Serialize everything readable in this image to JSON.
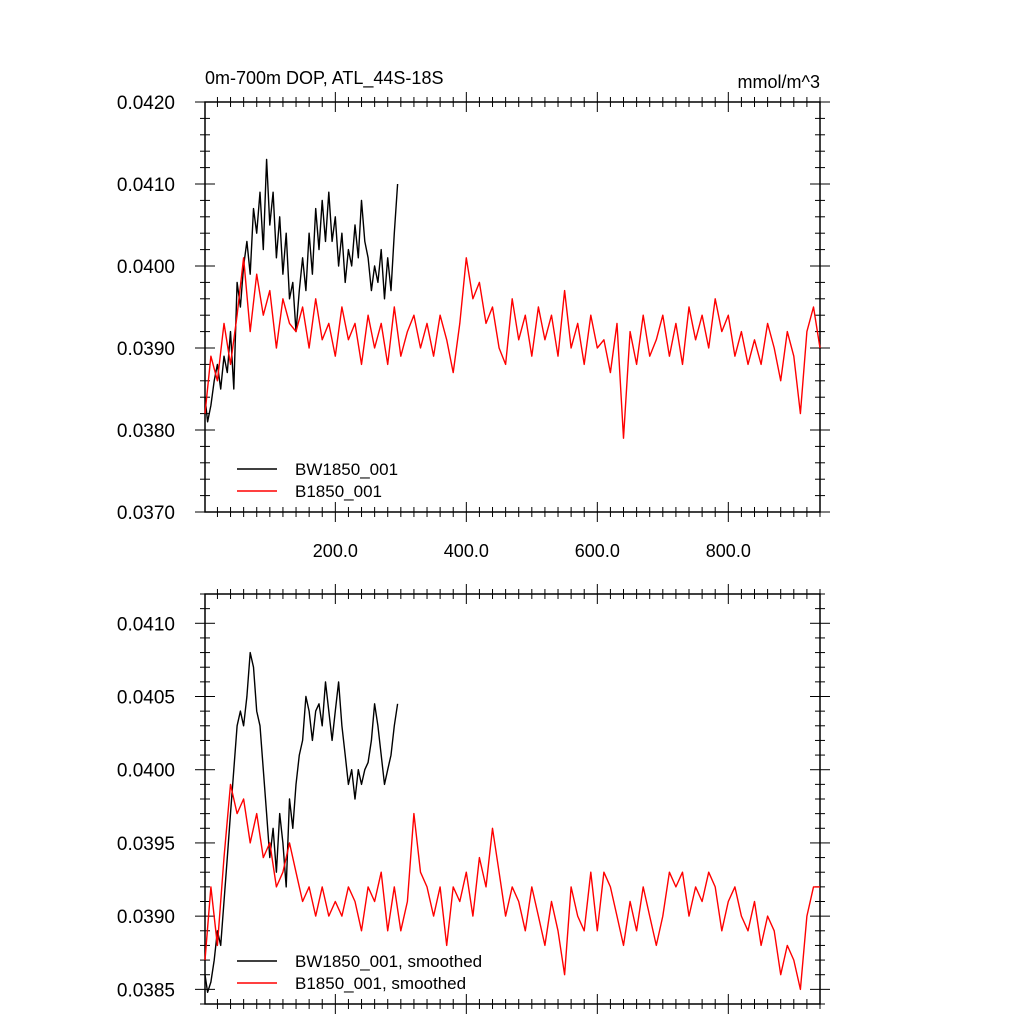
{
  "chart_data": [
    {
      "type": "line",
      "title": "0m-700m DOP, ATL_44S-18S",
      "units": "mmol/m^3",
      "xlim": [
        1,
        940
      ],
      "ylim": [
        0.037,
        0.042
      ],
      "x_ticks": [
        200,
        400,
        600,
        800
      ],
      "x_tick_labels": [
        "200.0",
        "400.0",
        "600.0",
        "800.0"
      ],
      "y_ticks": [
        0.037,
        0.038,
        0.039,
        0.04,
        0.041,
        0.042
      ],
      "y_tick_labels": [
        "0.0370",
        "0.0380",
        "0.0390",
        "0.0400",
        "0.0410",
        "0.0420"
      ],
      "legend_position": "bottom-left",
      "series": [
        {
          "name": "BW1850_001",
          "color": "#000000",
          "x": [
            1,
            5,
            10,
            15,
            20,
            25,
            30,
            35,
            40,
            45,
            50,
            55,
            60,
            65,
            70,
            75,
            80,
            85,
            90,
            95,
            100,
            105,
            110,
            115,
            120,
            125,
            130,
            135,
            140,
            145,
            150,
            155,
            160,
            165,
            170,
            175,
            180,
            185,
            190,
            195,
            200,
            205,
            210,
            215,
            220,
            225,
            230,
            235,
            240,
            245,
            250,
            255,
            260,
            265,
            270,
            275,
            280,
            285,
            290,
            295
          ],
          "values": [
            0.0384,
            0.0381,
            0.0383,
            0.0386,
            0.0388,
            0.0385,
            0.0389,
            0.0387,
            0.0392,
            0.0385,
            0.0398,
            0.0395,
            0.04,
            0.0403,
            0.0399,
            0.0407,
            0.0404,
            0.0409,
            0.0402,
            0.0413,
            0.0405,
            0.0409,
            0.0401,
            0.0406,
            0.0399,
            0.0404,
            0.0396,
            0.0398,
            0.0392,
            0.0397,
            0.0401,
            0.0397,
            0.0404,
            0.0399,
            0.0407,
            0.0402,
            0.0408,
            0.0403,
            0.0409,
            0.0403,
            0.0406,
            0.04,
            0.0404,
            0.0398,
            0.0402,
            0.04,
            0.0405,
            0.0401,
            0.0408,
            0.0403,
            0.0401,
            0.0397,
            0.04,
            0.0398,
            0.0402,
            0.0396,
            0.0401,
            0.0397,
            0.0404,
            0.041
          ]
        },
        {
          "name": "B1850_001",
          "color": "#ff0000",
          "x": [
            1,
            10,
            20,
            30,
            40,
            50,
            60,
            70,
            80,
            90,
            100,
            110,
            120,
            130,
            140,
            150,
            160,
            170,
            180,
            190,
            200,
            210,
            220,
            230,
            240,
            250,
            260,
            270,
            280,
            290,
            300,
            310,
            320,
            330,
            340,
            350,
            360,
            370,
            380,
            390,
            400,
            410,
            420,
            430,
            440,
            450,
            460,
            470,
            480,
            490,
            500,
            510,
            520,
            530,
            540,
            550,
            560,
            570,
            580,
            590,
            600,
            610,
            620,
            630,
            640,
            650,
            660,
            670,
            680,
            690,
            700,
            710,
            720,
            730,
            740,
            750,
            760,
            770,
            780,
            790,
            800,
            810,
            820,
            830,
            840,
            850,
            860,
            870,
            880,
            890,
            900,
            910,
            920,
            930,
            940
          ],
          "values": [
            0.0382,
            0.0389,
            0.0386,
            0.0393,
            0.0388,
            0.0394,
            0.0401,
            0.0392,
            0.0399,
            0.0394,
            0.0397,
            0.039,
            0.0396,
            0.0393,
            0.0392,
            0.0395,
            0.039,
            0.0396,
            0.0391,
            0.0393,
            0.0389,
            0.0395,
            0.0391,
            0.0393,
            0.0388,
            0.0394,
            0.039,
            0.0393,
            0.0388,
            0.0395,
            0.0389,
            0.0392,
            0.0394,
            0.039,
            0.0393,
            0.0389,
            0.0394,
            0.0391,
            0.0387,
            0.0393,
            0.0401,
            0.0396,
            0.0398,
            0.0393,
            0.0395,
            0.039,
            0.0388,
            0.0396,
            0.0391,
            0.0394,
            0.0389,
            0.0395,
            0.0391,
            0.0394,
            0.0389,
            0.0397,
            0.039,
            0.0393,
            0.0388,
            0.0394,
            0.039,
            0.0391,
            0.0387,
            0.0393,
            0.0379,
            0.0392,
            0.0388,
            0.0394,
            0.0389,
            0.0391,
            0.0394,
            0.0389,
            0.0393,
            0.0388,
            0.0395,
            0.0391,
            0.0394,
            0.039,
            0.0396,
            0.0392,
            0.0394,
            0.0389,
            0.0392,
            0.0388,
            0.0391,
            0.0388,
            0.0393,
            0.039,
            0.0386,
            0.0392,
            0.0389,
            0.0382,
            0.0392,
            0.0395,
            0.039
          ]
        }
      ]
    },
    {
      "type": "line",
      "xlim": [
        1,
        940
      ],
      "ylim": [
        0.0384,
        0.0412
      ],
      "x_ticks": [
        200,
        400,
        600,
        800
      ],
      "y_ticks": [
        0.0385,
        0.039,
        0.0395,
        0.04,
        0.0405,
        0.041
      ],
      "y_tick_labels": [
        "0.0385",
        "0.0390",
        "0.0395",
        "0.0400",
        "0.0405",
        "0.0410"
      ],
      "legend_position": "bottom-left",
      "series": [
        {
          "name": "BW1850_001, smoothed",
          "color": "#000000",
          "x": [
            1,
            5,
            10,
            15,
            20,
            25,
            30,
            35,
            40,
            45,
            50,
            55,
            60,
            65,
            70,
            75,
            80,
            85,
            90,
            95,
            100,
            105,
            110,
            115,
            120,
            125,
            130,
            135,
            140,
            145,
            150,
            155,
            160,
            165,
            170,
            175,
            180,
            185,
            190,
            195,
            200,
            205,
            210,
            215,
            220,
            225,
            230,
            235,
            240,
            245,
            250,
            255,
            260,
            265,
            270,
            275,
            280,
            285,
            290,
            295
          ],
          "values": [
            0.0386,
            0.03848,
            0.03855,
            0.0387,
            0.0389,
            0.0388,
            0.0391,
            0.0394,
            0.0397,
            0.04,
            0.0403,
            0.0404,
            0.0403,
            0.0405,
            0.0408,
            0.0407,
            0.0404,
            0.0403,
            0.04,
            0.0397,
            0.0394,
            0.0396,
            0.0393,
            0.0397,
            0.0395,
            0.0392,
            0.0398,
            0.0396,
            0.0399,
            0.0401,
            0.0402,
            0.0405,
            0.0404,
            0.0402,
            0.0404,
            0.04045,
            0.0403,
            0.0406,
            0.0404,
            0.0402,
            0.0404,
            0.0406,
            0.0403,
            0.0401,
            0.0399,
            0.04,
            0.0398,
            0.04,
            0.0399,
            0.04,
            0.04005,
            0.0402,
            0.04045,
            0.0403,
            0.0401,
            0.0399,
            0.04,
            0.0401,
            0.0403,
            0.04045
          ]
        },
        {
          "name": "B1850_001, smoothed",
          "color": "#ff0000",
          "x": [
            1,
            10,
            20,
            30,
            40,
            50,
            60,
            70,
            80,
            90,
            100,
            110,
            120,
            130,
            140,
            150,
            160,
            170,
            180,
            190,
            200,
            210,
            220,
            230,
            240,
            250,
            260,
            270,
            280,
            290,
            300,
            310,
            320,
            330,
            340,
            350,
            360,
            370,
            380,
            390,
            400,
            410,
            420,
            430,
            440,
            450,
            460,
            470,
            480,
            490,
            500,
            510,
            520,
            530,
            540,
            550,
            560,
            570,
            580,
            590,
            600,
            610,
            620,
            630,
            640,
            650,
            660,
            670,
            680,
            690,
            700,
            710,
            720,
            730,
            740,
            750,
            760,
            770,
            780,
            790,
            800,
            810,
            820,
            830,
            840,
            850,
            860,
            870,
            880,
            890,
            900,
            910,
            920,
            930,
            940
          ],
          "values": [
            0.0387,
            0.0392,
            0.0388,
            0.0394,
            0.0399,
            0.0397,
            0.0398,
            0.0395,
            0.0397,
            0.0394,
            0.0395,
            0.0392,
            0.0393,
            0.0395,
            0.0393,
            0.0391,
            0.0392,
            0.039,
            0.0392,
            0.039,
            0.0391,
            0.039,
            0.0392,
            0.0391,
            0.0389,
            0.0392,
            0.0391,
            0.0393,
            0.0389,
            0.0392,
            0.0389,
            0.0391,
            0.0397,
            0.0393,
            0.0392,
            0.039,
            0.0392,
            0.0388,
            0.0392,
            0.0391,
            0.0393,
            0.039,
            0.0394,
            0.0392,
            0.0396,
            0.0393,
            0.039,
            0.0392,
            0.0391,
            0.0389,
            0.0392,
            0.039,
            0.0388,
            0.0391,
            0.0389,
            0.0386,
            0.0392,
            0.039,
            0.0389,
            0.0393,
            0.0389,
            0.0393,
            0.0392,
            0.039,
            0.0388,
            0.0391,
            0.0389,
            0.0392,
            0.039,
            0.0388,
            0.039,
            0.0393,
            0.0392,
            0.0393,
            0.039,
            0.0392,
            0.0391,
            0.0393,
            0.0392,
            0.0389,
            0.0391,
            0.0392,
            0.039,
            0.0389,
            0.0391,
            0.0388,
            0.039,
            0.0389,
            0.0386,
            0.0388,
            0.0387,
            0.0385,
            0.039,
            0.0392,
            0.0392
          ]
        }
      ]
    }
  ]
}
